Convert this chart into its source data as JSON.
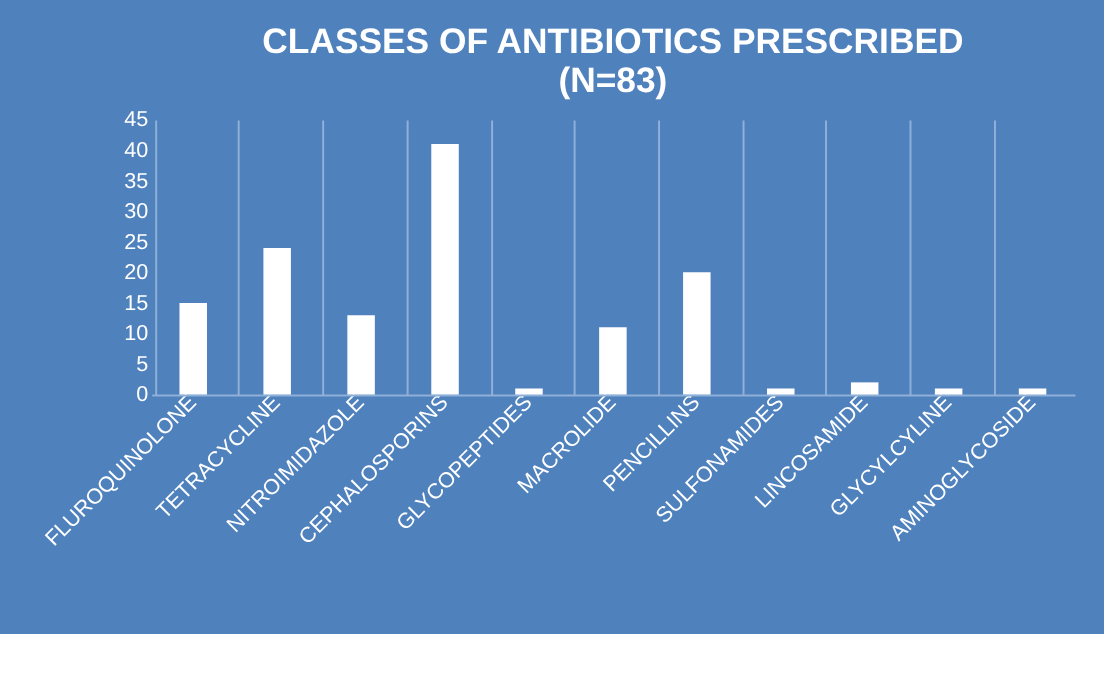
{
  "chart_data": {
    "type": "bar",
    "title": "CLASSES OF ANTIBIOTICS PRESCRIBED\n(N=83)",
    "categories": [
      "FLUROQUINOLONE",
      "TETRACYCLINE",
      "NITROIMIDAZOLE",
      "CEPHALOSPORINS",
      "GLYCOPEPTIDES",
      "MACROLIDE",
      "PENCILLINS",
      "SULFONAMIDES",
      "LINCOSAMIDE",
      "GLYCYLCYLINE",
      "AMINOGLYCOSIDE"
    ],
    "values": [
      15,
      24,
      13,
      41,
      1,
      11,
      20,
      1,
      2,
      1,
      1
    ],
    "color": "#ffffff",
    "ylim": [
      0,
      45
    ],
    "yticks": [
      0,
      5,
      10,
      15,
      20,
      25,
      30,
      35,
      40,
      45
    ],
    "grid": "x"
  }
}
